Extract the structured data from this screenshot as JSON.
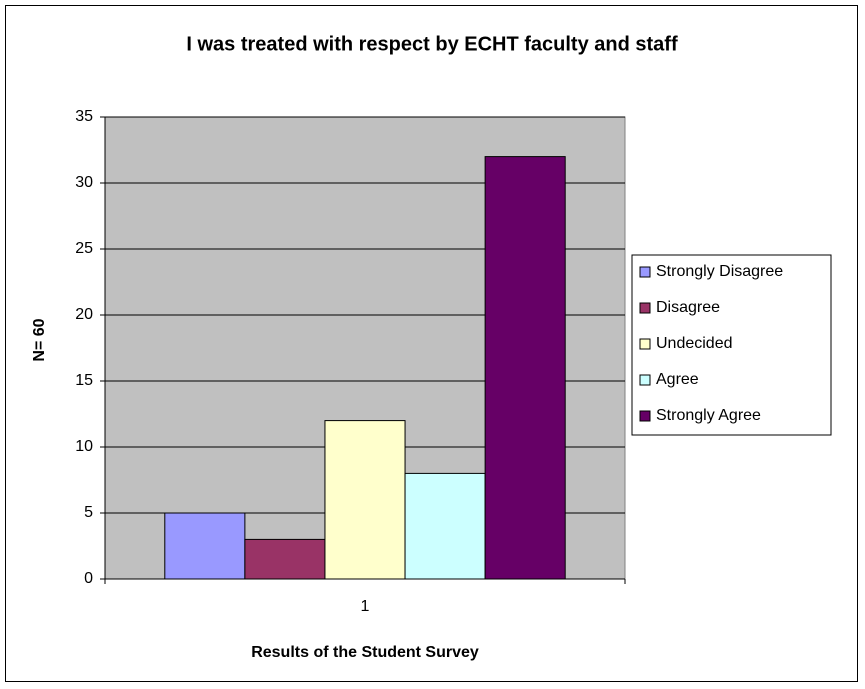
{
  "chart_data": {
    "type": "bar",
    "title": "I was treated with respect by ECHT faculty and staff",
    "x_label": "Results of  the Student Survey",
    "y_label": "N= 60",
    "categories": [
      "1"
    ],
    "series": [
      {
        "name": "Strongly Disagree",
        "color": "#9999ff",
        "values": [
          5
        ]
      },
      {
        "name": "Disagree",
        "color": "#993366",
        "values": [
          3
        ]
      },
      {
        "name": "Undecided",
        "color": "#ffffcc",
        "values": [
          12
        ]
      },
      {
        "name": "Agree",
        "color": "#ccffff",
        "values": [
          8
        ]
      },
      {
        "name": "Strongly Agree",
        "color": "#660066",
        "values": [
          32
        ]
      }
    ],
    "ylim": [
      0,
      35
    ],
    "yticks": [
      0,
      5,
      10,
      15,
      20,
      25,
      30,
      35
    ],
    "grid": true,
    "legend": "right",
    "plot_background": "#c0c0c0"
  }
}
